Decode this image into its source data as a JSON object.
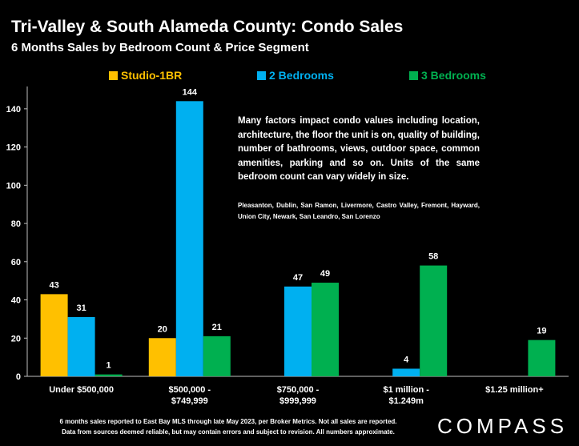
{
  "title": "Tri-Valley & South Alameda County: Condo  Sales",
  "subtitle": "6 Months Sales by Bedroom Count & Price Segment",
  "annotation": "Many factors impact condo values including location, architecture, the floor the unit is on, quality of building, number of bathrooms, views, outdoor space, common amenities, parking and so on. Units of the same bedroom count can vary widely in size.",
  "annotation_cities": "Pleasanton, Dublin, San Ramon, Livermore, Castro Valley, Fremont, Hayward, Union City, Newark, San Leandro, San Lorenzo",
  "footnote_line1": "6 months sales reported to East Bay MLS through late May 2023, per Broker Metrics. Not all sales are reported.",
  "footnote_line2": "Data from sources deemed reliable, but may contain errors and subject to revision. All numbers approximate.",
  "logo_text": "COMPASS",
  "chart_data": {
    "type": "bar",
    "title": "Tri-Valley & South Alameda County: Condo  Sales",
    "subtitle": "6 Months Sales by Bedroom Count & Price Segment",
    "categories": [
      [
        "Under $500,000"
      ],
      [
        "$500,000 -",
        "$749,999"
      ],
      [
        "$750,000 -",
        "$999,999"
      ],
      [
        "$1 million -",
        "$1.249m"
      ],
      [
        "$1.25 million+"
      ]
    ],
    "series": [
      {
        "name": "Studio-1BR",
        "color": "#FFC000",
        "values": [
          43,
          20,
          null,
          null,
          null
        ]
      },
      {
        "name": "2 Bedrooms",
        "color": "#00B0F0",
        "values": [
          31,
          144,
          47,
          4,
          null
        ]
      },
      {
        "name": "3 Bedrooms",
        "color": "#00B050",
        "values": [
          1,
          21,
          49,
          58,
          19
        ]
      }
    ],
    "ylim": [
      0,
      150
    ],
    "yticks": [
      0,
      20,
      40,
      60,
      80,
      100,
      120,
      140
    ],
    "grid": false,
    "legend": "top"
  }
}
